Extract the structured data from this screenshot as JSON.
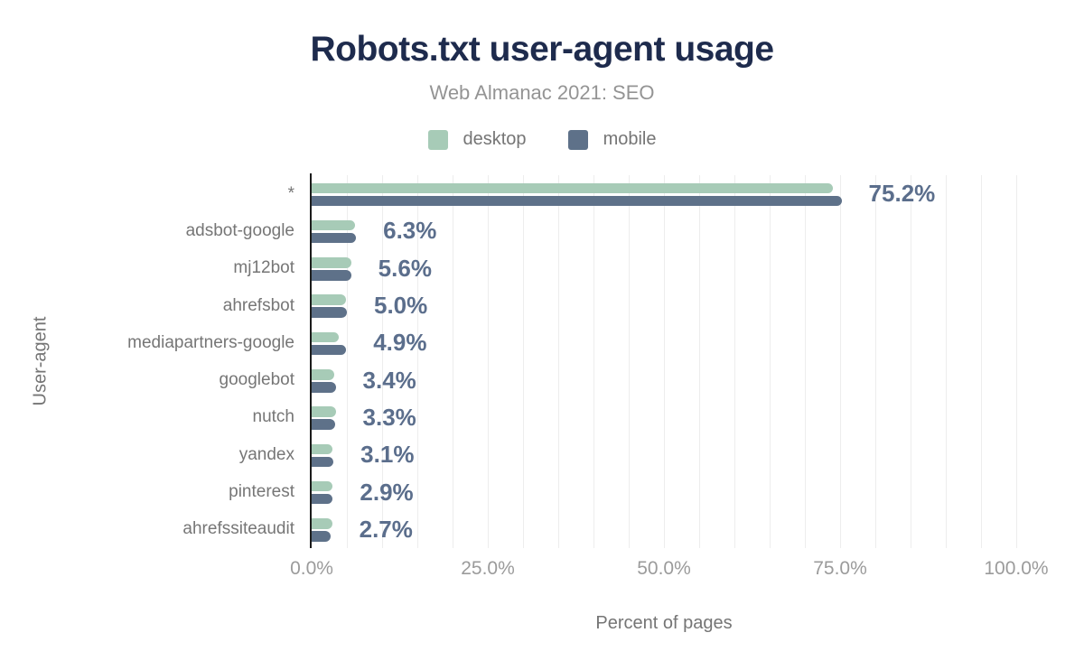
{
  "header": {
    "title": "Robots.txt user-agent usage",
    "subtitle": "Web Almanac 2021: SEO"
  },
  "legend": {
    "desktop_label": "desktop",
    "mobile_label": "mobile"
  },
  "colors": {
    "title": "#1e2b4d",
    "subtitle": "#949494",
    "desktop": "#a7cbb7",
    "mobile": "#5e7189",
    "value_label": "#5b6e8c",
    "axis_line": "#1c1c1c",
    "gridline": "#ededed",
    "tick_text": "#9b9b9b",
    "axis_title_text": "#757575"
  },
  "chart_data": {
    "type": "bar",
    "orientation": "horizontal",
    "title": "Robots.txt user-agent usage",
    "subtitle": "Web Almanac 2021: SEO",
    "categories": [
      "*",
      "adsbot-google",
      "mj12bot",
      "ahrefsbot",
      "mediapartners-google",
      "googlebot",
      "nutch",
      "yandex",
      "pinterest",
      "ahrefssiteaudit"
    ],
    "series": [
      {
        "name": "desktop",
        "color": "#a7cbb7",
        "values": [
          74.0,
          6.2,
          5.6,
          4.9,
          3.8,
          3.2,
          3.4,
          2.9,
          3.0,
          2.9
        ]
      },
      {
        "name": "mobile",
        "color": "#5e7189",
        "values": [
          75.2,
          6.3,
          5.6,
          5.0,
          4.9,
          3.4,
          3.3,
          3.1,
          2.9,
          2.7
        ]
      }
    ],
    "value_labels": [
      "75.2%",
      "6.3%",
      "5.6%",
      "5.0%",
      "4.9%",
      "3.4%",
      "3.3%",
      "3.1%",
      "2.9%",
      "2.7%"
    ],
    "xlabel": "Percent of pages",
    "ylabel": "User-agent",
    "xlim": [
      0,
      100
    ],
    "x_ticks": [
      "0.0%",
      "25.0%",
      "50.0%",
      "75.0%",
      "100.0%"
    ],
    "x_tick_values": [
      0,
      25,
      50,
      75,
      100
    ],
    "grid": {
      "minor_step": 5,
      "on": true
    },
    "legend_position": "top",
    "value_labels_source": "mobile"
  }
}
